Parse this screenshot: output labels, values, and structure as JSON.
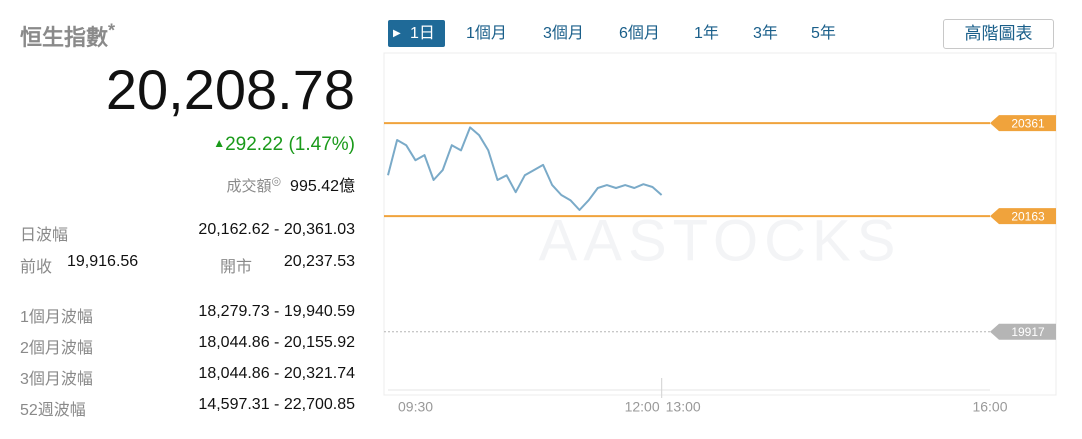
{
  "quote": {
    "title": "恒生指數",
    "title_mark": "*",
    "last": "20,208.78",
    "change": "292.22 (1.47%)",
    "turnover_label": "成交額",
    "turnover": "995.42億"
  },
  "day_range": {
    "label": "日波幅",
    "value": "20,162.62 - 20,361.03"
  },
  "prev_close": {
    "label": "前收",
    "value": "19,916.56"
  },
  "open": {
    "label": "開市",
    "value": "20,237.53"
  },
  "ranges": [
    {
      "label": "1個月波幅",
      "value": "18,279.73 - 19,940.59"
    },
    {
      "label": "2個月波幅",
      "value": "18,044.86 - 20,155.92"
    },
    {
      "label": "3個月波幅",
      "value": "18,044.86 - 20,321.74"
    },
    {
      "label": "52週波幅",
      "value": "14,597.31 - 22,700.85"
    }
  ],
  "tabs": [
    "1日",
    "1個月",
    "3個月",
    "6個月",
    "1年",
    "3年",
    "5年"
  ],
  "selected_tab": 0,
  "advanced_button": "高階圖表",
  "chart_data": {
    "type": "line",
    "watermark": "AASTOCKS",
    "x": [
      "09:30",
      "09:35",
      "09:40",
      "09:45",
      "09:50",
      "09:55",
      "10:00",
      "10:05",
      "10:10",
      "10:15",
      "10:20",
      "10:25",
      "10:30",
      "10:35",
      "10:40",
      "10:45",
      "10:50",
      "10:55",
      "11:00",
      "11:05",
      "11:10",
      "11:15",
      "11:20",
      "11:25",
      "11:30",
      "11:35",
      "11:40",
      "11:45",
      "11:50",
      "11:55",
      "12:00"
    ],
    "series": [
      {
        "color": "#7aaac8",
        "values": [
          20250,
          20325,
          20314,
          20282,
          20293,
          20240,
          20261,
          20314,
          20303,
          20352,
          20335,
          20303,
          20240,
          20250,
          20214,
          20250,
          20261,
          20272,
          20229,
          20208,
          20197,
          20176,
          20197,
          20223,
          20229,
          20223,
          20229,
          20223,
          20231,
          20225,
          20208
        ]
      }
    ],
    "xlim": [
      "09:30",
      "16:00"
    ],
    "xticks": [
      "09:30",
      "12:00",
      "13:00",
      "16:00"
    ],
    "ylim": [
      19793,
      20506
    ],
    "ref_lines": [
      {
        "value": 20361,
        "color": "#f0a33c",
        "style": "solid"
      },
      {
        "value": 20163,
        "color": "#f0a33c",
        "style": "solid"
      },
      {
        "value": 19917,
        "color": "#b5b5b5",
        "style": "dotted"
      }
    ]
  }
}
